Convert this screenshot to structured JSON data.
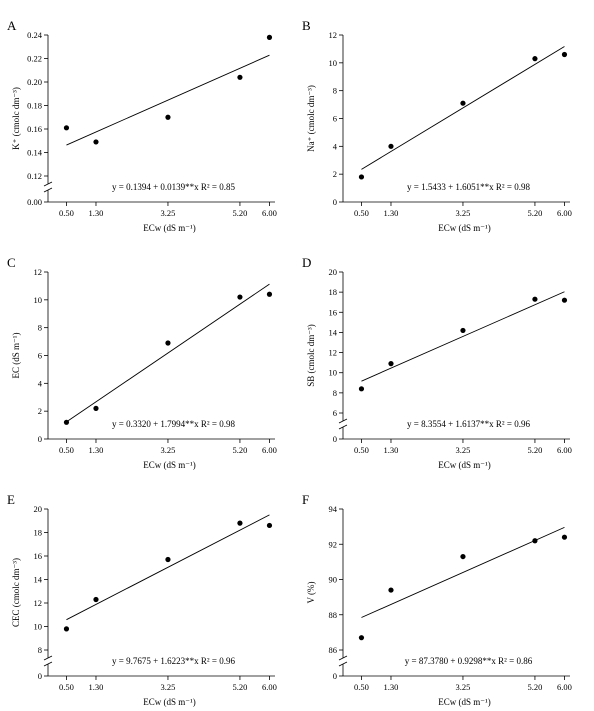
{
  "chart_data": [
    {
      "panel_label": "A",
      "type": "scatter",
      "xlabel": "ECw (dS m⁻¹)",
      "ylabel": "K⁺ (cmolc dm⁻³)",
      "x_ticks": [
        "0.50",
        "1.30",
        "3.25",
        "5.20",
        "6.00"
      ],
      "y_ticks": [
        "0.00",
        "0.12",
        "0.14",
        "0.16",
        "0.18",
        "0.20",
        "0.22",
        "0.24"
      ],
      "axis_break": true,
      "ylim": [
        0.12,
        0.24
      ],
      "points": [
        {
          "x": 0.5,
          "y": 0.161
        },
        {
          "x": 1.3,
          "y": 0.149
        },
        {
          "x": 3.25,
          "y": 0.17
        },
        {
          "x": 5.2,
          "y": 0.204
        },
        {
          "x": 6.0,
          "y": 0.238
        }
      ],
      "fit": {
        "intercept": 0.1394,
        "slope": 0.0139
      },
      "equation": "y = 0.1394 + 0.0139**x R² = 0.85"
    },
    {
      "panel_label": "B",
      "type": "scatter",
      "xlabel": "ECw (dS m⁻¹)",
      "ylabel": "Na⁺ (cmolc dm⁻³)",
      "x_ticks": [
        "0.50",
        "1.30",
        "3.25",
        "5.20",
        "6.00"
      ],
      "y_ticks": [
        "0",
        "2",
        "4",
        "6",
        "8",
        "10",
        "12"
      ],
      "axis_break": false,
      "ylim": [
        0,
        12
      ],
      "points": [
        {
          "x": 0.5,
          "y": 1.8
        },
        {
          "x": 1.3,
          "y": 4.0
        },
        {
          "x": 3.25,
          "y": 7.1
        },
        {
          "x": 5.2,
          "y": 10.3
        },
        {
          "x": 6.0,
          "y": 10.6
        }
      ],
      "fit": {
        "intercept": 1.5433,
        "slope": 1.6051
      },
      "equation": "y = 1.5433 + 1.6051**x R² = 0.98"
    },
    {
      "panel_label": "C",
      "type": "scatter",
      "xlabel": "ECw (dS m⁻¹)",
      "ylabel": "EC (dS m⁻¹)",
      "x_ticks": [
        "0.50",
        "1.30",
        "3.25",
        "5.20",
        "6.00"
      ],
      "y_ticks": [
        "0",
        "2",
        "4",
        "6",
        "8",
        "10",
        "12"
      ],
      "axis_break": false,
      "ylim": [
        0,
        12
      ],
      "points": [
        {
          "x": 0.5,
          "y": 1.2
        },
        {
          "x": 1.3,
          "y": 2.2
        },
        {
          "x": 3.25,
          "y": 6.9
        },
        {
          "x": 5.2,
          "y": 10.2
        },
        {
          "x": 6.0,
          "y": 10.4
        }
      ],
      "fit": {
        "intercept": 0.332,
        "slope": 1.7994
      },
      "equation": "y = 0.3320 + 1.7994**x R² = 0.98"
    },
    {
      "panel_label": "D",
      "type": "scatter",
      "xlabel": "ECw (dS m⁻¹)",
      "ylabel": "SB (cmolc dm⁻³)",
      "x_ticks": [
        "0.50",
        "1.30",
        "3.25",
        "5.20",
        "6.00"
      ],
      "y_ticks": [
        "0",
        "6",
        "8",
        "10",
        "12",
        "14",
        "16",
        "18",
        "20"
      ],
      "axis_break": true,
      "ylim": [
        6,
        20
      ],
      "points": [
        {
          "x": 0.5,
          "y": 8.4
        },
        {
          "x": 1.3,
          "y": 10.9
        },
        {
          "x": 3.25,
          "y": 14.2
        },
        {
          "x": 5.2,
          "y": 17.3
        },
        {
          "x": 6.0,
          "y": 17.2
        }
      ],
      "fit": {
        "intercept": 8.3554,
        "slope": 1.6137
      },
      "equation": "y = 8.3554 + 1.6137**x R² = 0.96"
    },
    {
      "panel_label": "E",
      "type": "scatter",
      "xlabel": "ECw (dS m⁻¹)",
      "ylabel": "CEC (cmolc dm⁻³)",
      "x_ticks": [
        "0.50",
        "1.30",
        "3.25",
        "5.20",
        "6.00"
      ],
      "y_ticks": [
        "0",
        "8",
        "10",
        "12",
        "14",
        "16",
        "18",
        "20"
      ],
      "axis_break": true,
      "ylim": [
        8,
        20
      ],
      "points": [
        {
          "x": 0.5,
          "y": 9.8
        },
        {
          "x": 1.3,
          "y": 12.3
        },
        {
          "x": 3.25,
          "y": 15.7
        },
        {
          "x": 5.2,
          "y": 18.8
        },
        {
          "x": 6.0,
          "y": 18.6
        }
      ],
      "fit": {
        "intercept": 9.7675,
        "slope": 1.6223
      },
      "equation": "y = 9.7675 + 1.6223**x R² = 0.96"
    },
    {
      "panel_label": "F",
      "type": "scatter",
      "xlabel": "ECw (dS m⁻¹)",
      "ylabel": "V (%)",
      "x_ticks": [
        "0.50",
        "1.30",
        "3.25",
        "5.20",
        "6.00"
      ],
      "y_ticks": [
        "0",
        "86",
        "88",
        "90",
        "92",
        "94"
      ],
      "axis_break": true,
      "ylim": [
        86,
        94
      ],
      "points": [
        {
          "x": 0.5,
          "y": 86.7
        },
        {
          "x": 1.3,
          "y": 89.4
        },
        {
          "x": 3.25,
          "y": 91.3
        },
        {
          "x": 5.2,
          "y": 92.2
        },
        {
          "x": 6.0,
          "y": 92.4
        }
      ],
      "fit": {
        "intercept": 87.378,
        "slope": 0.9298
      },
      "equation": "y = 87.3780 + 0.9298**x R² = 0.86"
    }
  ]
}
